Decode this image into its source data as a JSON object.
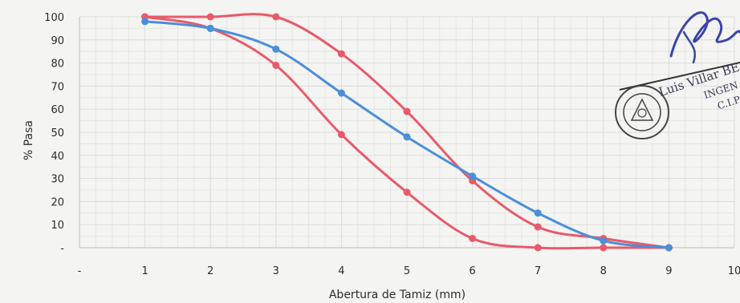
{
  "chart_data": {
    "type": "line",
    "xlabel": "Abertura de Tamiz (mm)",
    "ylabel": "% Pasa",
    "xlim": [
      0,
      10
    ],
    "ylim": [
      0,
      100
    ],
    "x_ticks": [
      "-",
      "1",
      "2",
      "3",
      "4",
      "5",
      "6",
      "7",
      "8",
      "9",
      "10"
    ],
    "y_ticks": [
      "-",
      "10",
      "20",
      "30",
      "40",
      "50",
      "60",
      "70",
      "80",
      "90",
      "100"
    ],
    "grid": true,
    "series": [
      {
        "color": "#e85a6a",
        "x": [
          1,
          2,
          3,
          4,
          5,
          6,
          7,
          8,
          9
        ],
        "values": [
          100,
          100,
          100,
          84,
          59,
          29,
          9,
          4,
          0
        ]
      },
      {
        "color": "#e85a6a",
        "x": [
          1,
          2,
          3,
          4,
          5,
          6,
          7,
          8,
          9
        ],
        "values": [
          100,
          95,
          79,
          49,
          24,
          4,
          0,
          0,
          0
        ]
      },
      {
        "color": "#4a8fd8",
        "x": [
          1,
          2,
          3,
          4,
          5,
          6,
          7,
          8,
          9
        ],
        "values": [
          98,
          95,
          86,
          67,
          48,
          31,
          15,
          3,
          0
        ]
      }
    ]
  },
  "stamp": {
    "signature_name": "Luis Villar BE",
    "line2": "INGEN",
    "line3": "C.I.P"
  }
}
